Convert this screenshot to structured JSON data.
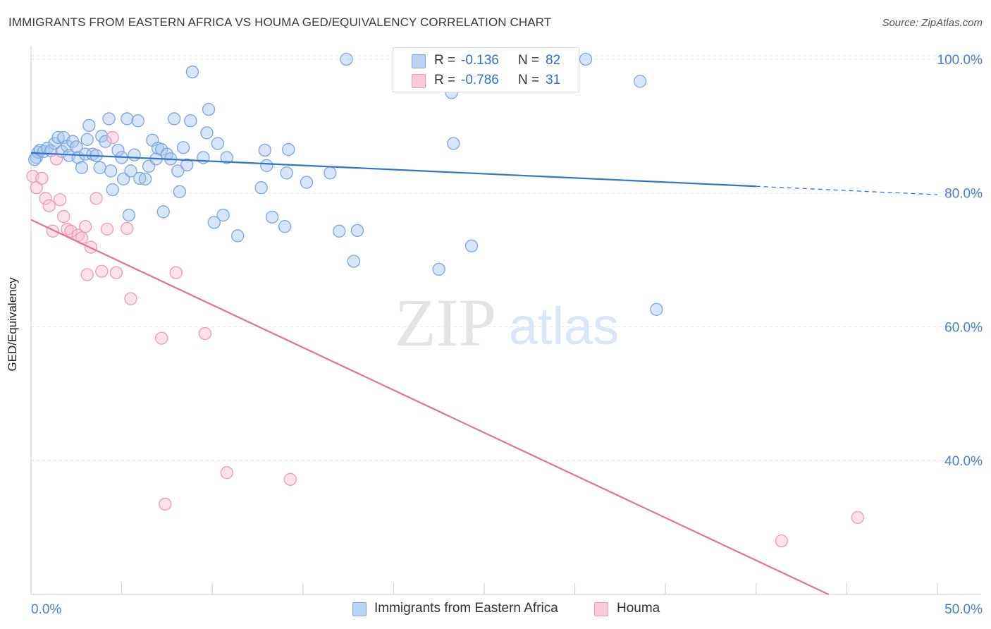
{
  "header": {
    "title": "IMMIGRANTS FROM EASTERN AFRICA VS HOUMA GED/EQUIVALENCY CORRELATION CHART",
    "source": "Source: ZipAtlas.com"
  },
  "watermark": {
    "part1": "ZIP",
    "part2": "atlas"
  },
  "legend": {
    "items": [
      {
        "r_label": "R =",
        "r_value": "-0.136",
        "n_label": "N =",
        "n_value": "82"
      },
      {
        "r_label": "R =",
        "r_value": "-0.786",
        "n_label": "N =",
        "n_value": "31"
      }
    ]
  },
  "bottom_legend": {
    "items": [
      {
        "label": "Immigrants from Eastern Africa"
      },
      {
        "label": "Houma"
      }
    ]
  },
  "colors": {
    "blue_fill": "#a9c6f0",
    "blue_stroke": "#7aa6e2",
    "blue_line": "#2f74d0",
    "pink_fill": "#f6bcd0",
    "pink_stroke": "#ee9ab8",
    "pink_line": "#e8709a",
    "tick_label": "#4a7fd0",
    "grid": "#e6e6e6"
  },
  "chart_data": {
    "type": "scatter",
    "title": "IMMIGRANTS FROM EASTERN AFRICA VS HOUMA GED/EQUIVALENCY CORRELATION CHART",
    "xlabel": "",
    "ylabel": "GED/Equivalency",
    "xlim": [
      0,
      50
    ],
    "ylim": [
      20,
      102
    ],
    "x_tick_labels": [
      "0.0%",
      "50.0%"
    ],
    "y_ticks": [
      40,
      60,
      80,
      100
    ],
    "y_tick_labels": [
      "40.0%",
      "60.0%",
      "80.0%",
      "100.0%"
    ],
    "grid": true,
    "legend_position": "top-center",
    "series": [
      {
        "name": "Immigrants from Eastern Africa",
        "color": "#a9c6f0",
        "trend": {
          "x": [
            0,
            40
          ],
          "y": [
            86.0,
            81.0
          ],
          "dashed_extension_to_x": 50
        },
        "points": [
          [
            0.3,
            85.3
          ],
          [
            0.4,
            86.1
          ],
          [
            0.5,
            86.4
          ],
          [
            0.7,
            86.2
          ],
          [
            0.9,
            86.7
          ],
          [
            1.1,
            86.3
          ],
          [
            1.3,
            87.4
          ],
          [
            1.5,
            88.3
          ],
          [
            1.7,
            86.2
          ],
          [
            1.8,
            88.3
          ],
          [
            2.0,
            87.0
          ],
          [
            2.1,
            85.6
          ],
          [
            2.3,
            87.7
          ],
          [
            2.5,
            86.9
          ],
          [
            2.6,
            85.3
          ],
          [
            2.8,
            83.8
          ],
          [
            3.0,
            85.8
          ],
          [
            3.1,
            88.0
          ],
          [
            3.2,
            90.1
          ],
          [
            3.4,
            85.8
          ],
          [
            3.6,
            85.6
          ],
          [
            3.8,
            83.8
          ],
          [
            3.9,
            88.5
          ],
          [
            4.1,
            87.7
          ],
          [
            4.3,
            91.1
          ],
          [
            4.4,
            83.3
          ],
          [
            4.5,
            80.5
          ],
          [
            4.8,
            86.4
          ],
          [
            5.0,
            85.3
          ],
          [
            5.1,
            82.1
          ],
          [
            5.3,
            91.1
          ],
          [
            5.4,
            76.7
          ],
          [
            5.5,
            83.3
          ],
          [
            5.7,
            85.7
          ],
          [
            5.9,
            90.8
          ],
          [
            6.0,
            82.2
          ],
          [
            6.3,
            82.1
          ],
          [
            6.5,
            84.0
          ],
          [
            6.7,
            87.9
          ],
          [
            6.9,
            85.1
          ],
          [
            7.0,
            86.7
          ],
          [
            7.2,
            86.5
          ],
          [
            7.3,
            77.2
          ],
          [
            7.5,
            85.8
          ],
          [
            7.7,
            85.1
          ],
          [
            7.9,
            91.1
          ],
          [
            8.1,
            83.3
          ],
          [
            8.2,
            80.2
          ],
          [
            8.4,
            86.8
          ],
          [
            8.6,
            84.2
          ],
          [
            8.8,
            90.8
          ],
          [
            8.9,
            98.1
          ],
          [
            9.5,
            85.3
          ],
          [
            9.7,
            89.0
          ],
          [
            9.8,
            92.5
          ],
          [
            10.1,
            75.6
          ],
          [
            10.3,
            87.4
          ],
          [
            10.6,
            76.7
          ],
          [
            10.8,
            85.3
          ],
          [
            11.4,
            73.6
          ],
          [
            12.7,
            80.8
          ],
          [
            12.9,
            86.4
          ],
          [
            13.0,
            84.1
          ],
          [
            13.3,
            76.4
          ],
          [
            14.0,
            75.0
          ],
          [
            14.1,
            83.0
          ],
          [
            14.2,
            86.5
          ],
          [
            15.2,
            81.6
          ],
          [
            16.5,
            83.0
          ],
          [
            17.0,
            74.3
          ],
          [
            17.4,
            100.0
          ],
          [
            17.8,
            69.8
          ],
          [
            18.0,
            74.4
          ],
          [
            22.5,
            68.6
          ],
          [
            23.2,
            95.0
          ],
          [
            23.3,
            87.4
          ],
          [
            24.3,
            72.1
          ],
          [
            25.0,
            100.0
          ],
          [
            30.6,
            100.0
          ],
          [
            33.6,
            96.7
          ],
          [
            34.5,
            62.6
          ],
          [
            0.2,
            85.0
          ]
        ]
      },
      {
        "name": "Houma",
        "color": "#f6bcd0",
        "trend": {
          "x": [
            0,
            44
          ],
          "y": [
            76.0,
            20.0
          ]
        },
        "points": [
          [
            0.1,
            82.5
          ],
          [
            0.3,
            80.8
          ],
          [
            0.6,
            82.2
          ],
          [
            0.8,
            79.2
          ],
          [
            1.0,
            78.1
          ],
          [
            1.2,
            74.3
          ],
          [
            1.4,
            85.1
          ],
          [
            1.6,
            79.0
          ],
          [
            1.8,
            76.5
          ],
          [
            2.0,
            74.6
          ],
          [
            2.2,
            74.3
          ],
          [
            2.6,
            73.7
          ],
          [
            2.8,
            73.3
          ],
          [
            3.0,
            75.0
          ],
          [
            3.1,
            67.8
          ],
          [
            3.3,
            71.9
          ],
          [
            3.6,
            79.2
          ],
          [
            3.9,
            68.3
          ],
          [
            4.2,
            74.6
          ],
          [
            4.5,
            88.3
          ],
          [
            4.7,
            68.1
          ],
          [
            5.3,
            74.7
          ],
          [
            5.5,
            64.2
          ],
          [
            7.2,
            58.3
          ],
          [
            7.4,
            33.5
          ],
          [
            8.0,
            68.1
          ],
          [
            9.6,
            59.0
          ],
          [
            10.8,
            38.2
          ],
          [
            14.3,
            37.2
          ],
          [
            41.4,
            28.0
          ],
          [
            45.6,
            31.5
          ]
        ]
      }
    ]
  }
}
